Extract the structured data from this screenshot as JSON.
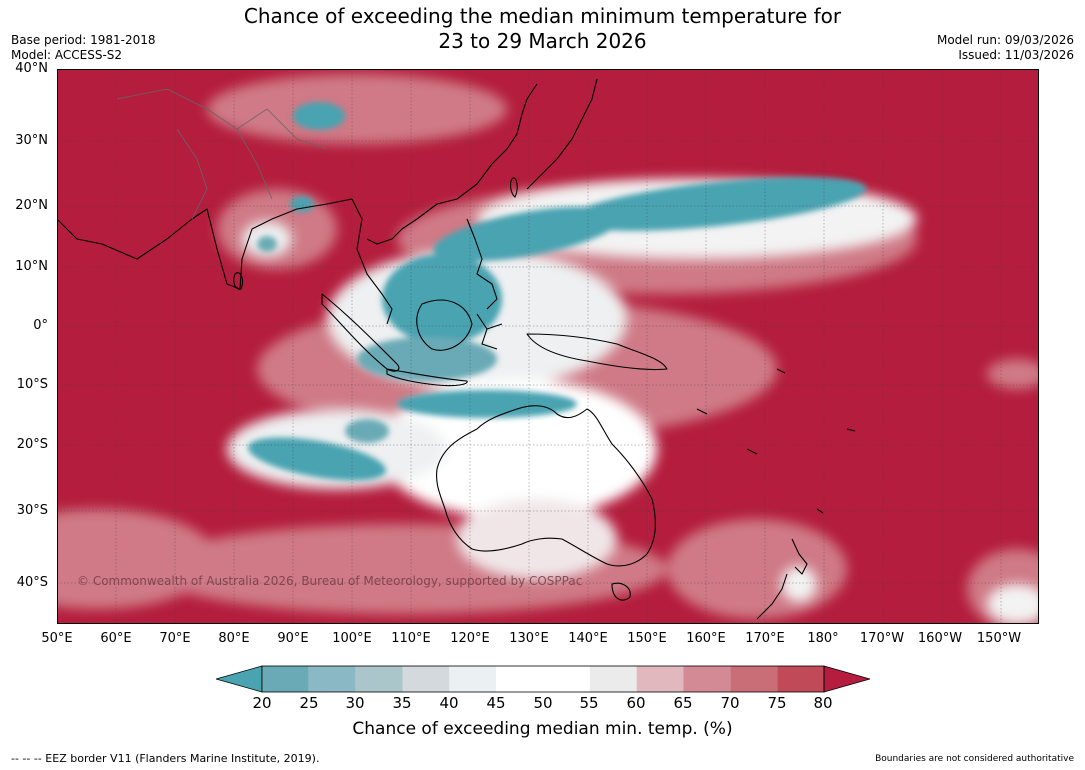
{
  "title_line1": "Chance of exceeding the median minimum temperature for",
  "title_line2": "23 to 29 March 2026",
  "base_period": "Base period: 1981-2018",
  "model": "Model: ACCESS-S2",
  "model_run": "Model run: 09/03/2026",
  "issued": "Issued: 11/03/2026",
  "lat_labels": [
    "40°N",
    "30°N",
    "20°N",
    "10°N",
    "0°",
    "10°S",
    "20°S",
    "30°S",
    "40°S"
  ],
  "lon_labels": [
    "50°E",
    "60°E",
    "70°E",
    "80°E",
    "90°E",
    "100°E",
    "110°E",
    "120°E",
    "130°E",
    "140°E",
    "150°E",
    "160°E",
    "170°E",
    "180°",
    "170°W",
    "160°W",
    "150°W"
  ],
  "copyright": "© Commonwealth of Australia 2026, Bureau of Meteorology, supported by COSPPac",
  "colorbar": {
    "ticks": [
      "20",
      "25",
      "30",
      "35",
      "40",
      "45",
      "50",
      "55",
      "60",
      "65",
      "70",
      "75",
      "80"
    ],
    "colors": [
      "#4aa3b1",
      "#6aaab6",
      "#8ab8c4",
      "#abc6cb",
      "#d3d9dc",
      "#ebf0f2",
      "#ffffff",
      "#ffffff",
      "#ebebeb",
      "#e0b8bd",
      "#d48a94",
      "#c96d77",
      "#c04a57",
      "#b41d3d"
    ],
    "label": "Chance of exceeding median min. temp. (%)"
  },
  "footer_left": "--  --  -- EEZ border V11 (Flanders Marine Institute, 2019).",
  "footer_right": "Boundaries are not considered authoritative"
}
